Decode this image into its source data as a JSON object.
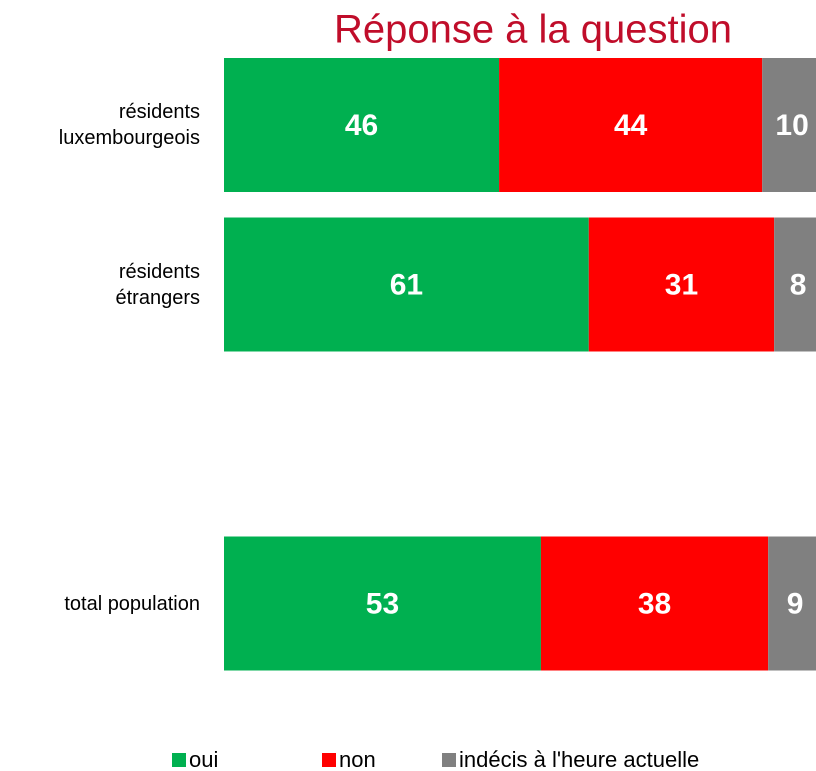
{
  "chart_data": {
    "type": "stacked-barh",
    "title": "Réponse à la question",
    "categories": [
      "résidents\nluxembourgeois",
      "résidents\nétrangers",
      null,
      "total population"
    ],
    "series": [
      {
        "name": "oui",
        "color": "#00b050",
        "values": [
          46,
          61,
          null,
          53
        ]
      },
      {
        "name": "non",
        "color": "#ff0000",
        "values": [
          44,
          31,
          null,
          38
        ]
      },
      {
        "name": "indécis à l'heure actuelle",
        "color": "#808080",
        "values": [
          10,
          8,
          null,
          9
        ]
      }
    ],
    "xlim": [
      0,
      100
    ],
    "legend": "bottom"
  }
}
